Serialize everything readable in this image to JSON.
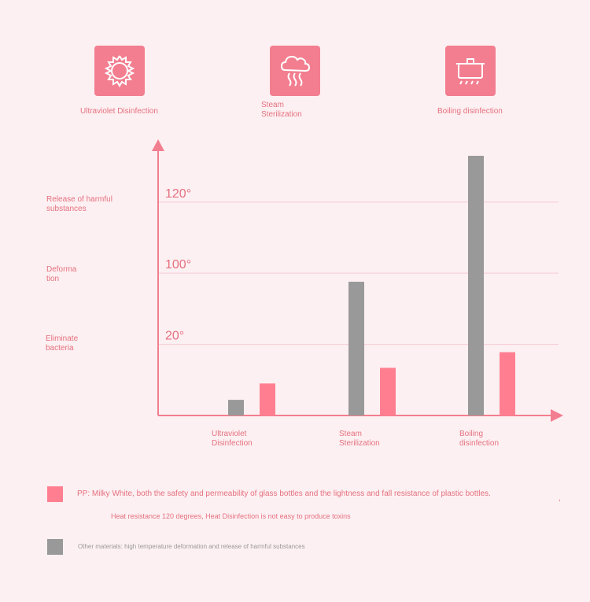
{
  "icons": [
    {
      "name": "sun-icon",
      "label": "Ultraviolet Disinfection"
    },
    {
      "name": "steam-cloud-icon",
      "label": "Steam\nSterilization"
    },
    {
      "name": "boiling-pot-icon",
      "label": "Boiling disinfection"
    }
  ],
  "side_labels": [
    "Release of harmful\nsubstances",
    "Deforma\ntion",
    "Eliminate\nbacteria"
  ],
  "legend": {
    "pp_text": "PP: Milky White, both the safety and permeability of glass bottles and the lightness and fall resistance of plastic bottles.",
    "pp_subtext": "Heat resistance 120 degrees, Heat Disinfection is not easy to produce toxins",
    "other_text": "Other materials: high temperature deformation and release of harmful substances"
  },
  "colors": {
    "pp": "#ff7f91",
    "other": "#999999",
    "axis": "#f27e8f",
    "grid": "#f6c9d1",
    "tick": "#e5707f"
  },
  "chart_data": {
    "type": "bar",
    "categories": [
      "Ultraviolet\nDisinfection",
      "Steam\nSterilization",
      "Boiling\ndisinfection"
    ],
    "y_ticks": [
      "20°",
      "100°",
      "120°"
    ],
    "series": [
      {
        "key": "other",
        "values": [
          0.22,
          1.88,
          3.65
        ]
      },
      {
        "key": "pp",
        "values": [
          0.45,
          0.67,
          0.89
        ]
      }
    ],
    "ylim": [
      0,
      3.65
    ],
    "grid": true
  }
}
